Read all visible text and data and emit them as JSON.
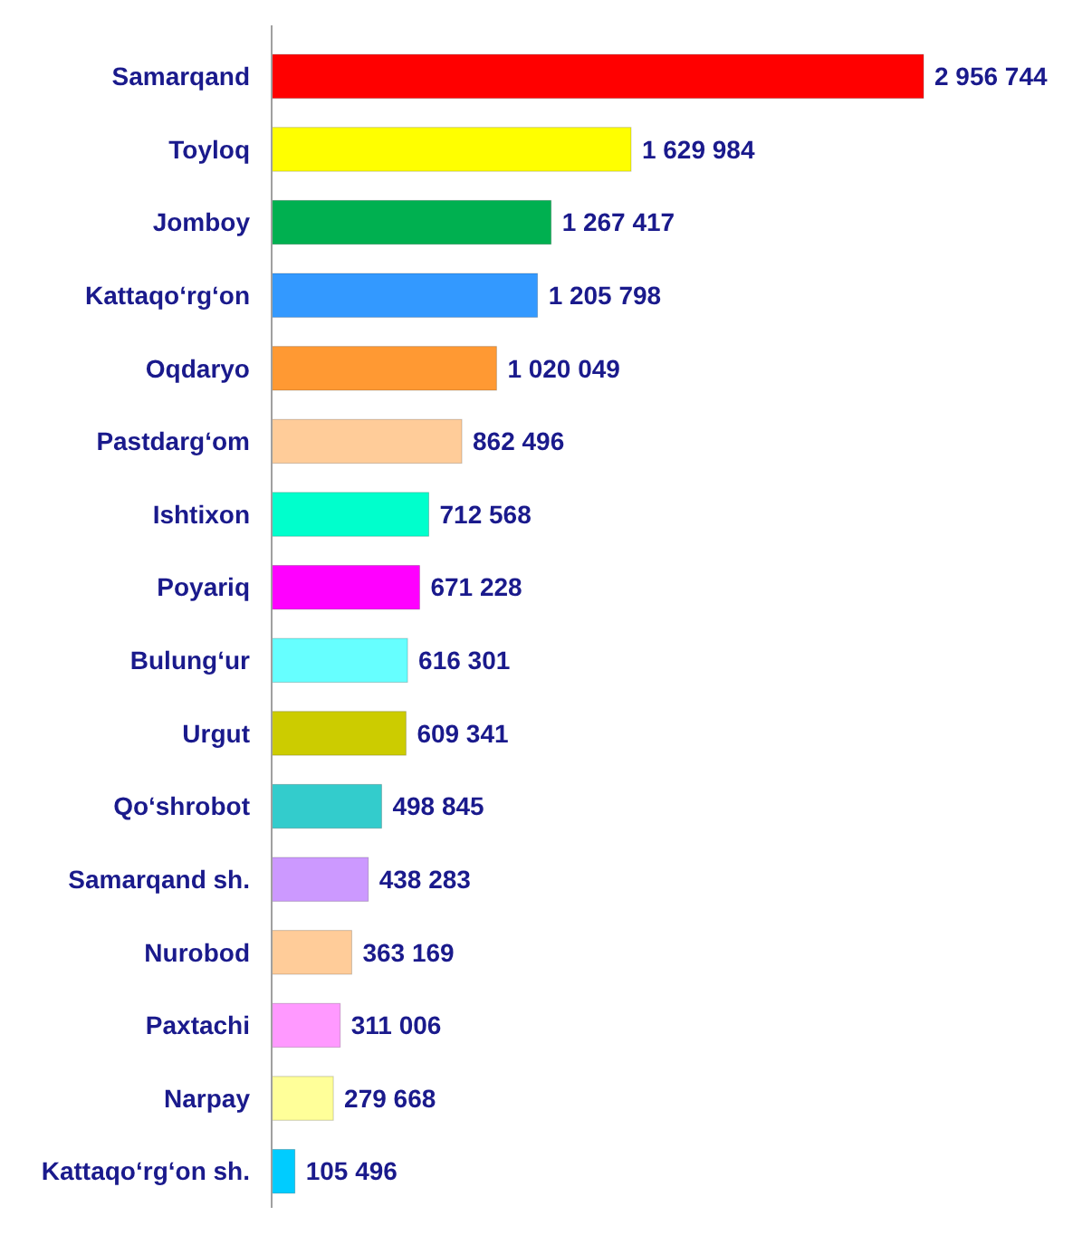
{
  "chart_data": {
    "type": "bar",
    "orientation": "horizontal",
    "categories": [
      "Samarqand",
      "Toyloq",
      "Jomboy",
      "Kattaqo‘rg‘on",
      "Oqdaryo",
      "Pastdarg‘om",
      "Ishtixon",
      "Poyariq",
      "Bulung‘ur",
      "Urgut",
      "Qo‘shrobot",
      "Samarqand sh.",
      "Nurobod",
      "Paxtachi",
      "Narpay",
      "Kattaqo‘rg‘on sh."
    ],
    "values": [
      2956744,
      1629984,
      1267417,
      1205798,
      1020049,
      862496,
      712568,
      671228,
      616301,
      609341,
      498845,
      438283,
      363169,
      311006,
      279668,
      105496
    ],
    "value_labels": [
      "2 956 744",
      "1 629 984",
      "1 267 417",
      "1 205 798",
      "1 020 049",
      "862 496",
      "712 568",
      "671 228",
      "616 301",
      "609 341",
      "498 845",
      "438 283",
      "363 169",
      "311 006",
      "279 668",
      "105 496"
    ],
    "colors": [
      "#ff0000",
      "#ffff00",
      "#00b050",
      "#3399ff",
      "#ff9933",
      "#ffcc99",
      "#00ffcc",
      "#ff00ff",
      "#66ffff",
      "#cccc00",
      "#33cccc",
      "#cc99ff",
      "#ffcc99",
      "#ff99ff",
      "#ffff99",
      "#00ccff"
    ]
  }
}
